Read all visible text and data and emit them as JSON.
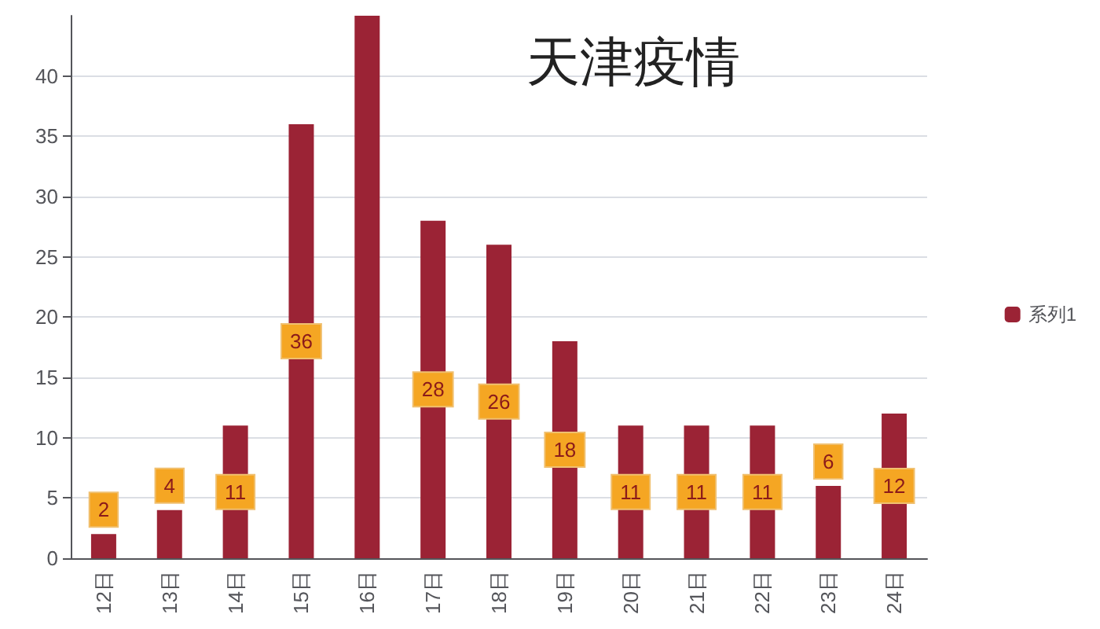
{
  "chart_data": {
    "type": "bar",
    "title": "天津疫情",
    "categories": [
      "12日",
      "13日",
      "14日",
      "15日",
      "16日",
      "17日",
      "18日",
      "19日",
      "20日",
      "21日",
      "22日",
      "23日",
      "24日"
    ],
    "series": [
      {
        "name": "系列1",
        "color": "#9b2335",
        "values": [
          2,
          4,
          11,
          36,
          45,
          28,
          26,
          18,
          11,
          11,
          11,
          6,
          12
        ]
      }
    ],
    "value_labels": [
      "2",
      "4",
      "11",
      "36",
      null,
      "28",
      "26",
      "18",
      "11",
      "11",
      "11",
      "6",
      "12"
    ],
    "ylim": [
      0,
      45
    ],
    "yticks": [
      0,
      5,
      10,
      15,
      20,
      25,
      30,
      35,
      40
    ],
    "grid": "y",
    "legend": "right"
  }
}
